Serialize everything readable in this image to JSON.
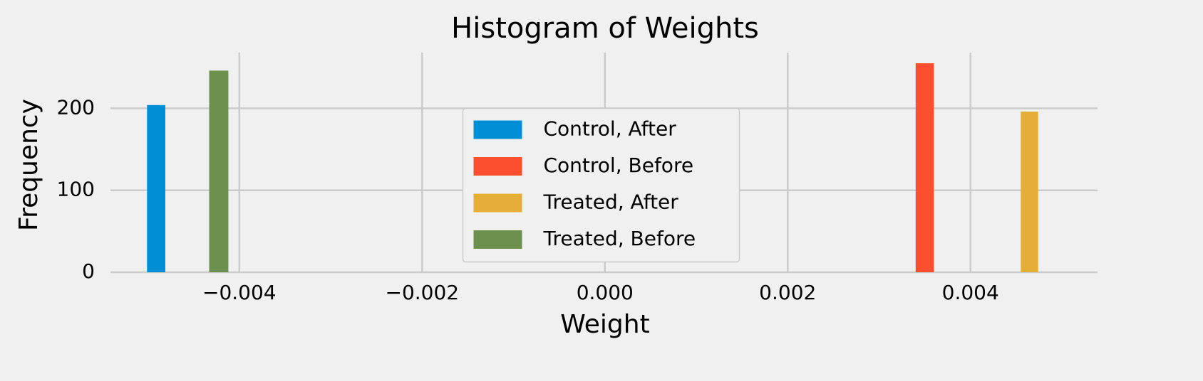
{
  "chart_data": {
    "type": "histogram",
    "title": "Histogram of Weights",
    "x_label": "Weight",
    "y_label": "Frequency",
    "series": [
      {
        "name": "Control, After",
        "color": "#008fd5",
        "bins": [
          -0.00501,
          -0.00481
        ],
        "values": [
          204
        ]
      },
      {
        "name": "Control, Before",
        "color": "#fc4f30",
        "bins": [
          0.0034,
          0.0036
        ],
        "values": [
          255
        ]
      },
      {
        "name": "Treated, After",
        "color": "#e5ae38",
        "bins": [
          0.00455,
          0.00474
        ],
        "values": [
          196
        ]
      },
      {
        "name": "Treated, Before",
        "color": "#6d904f",
        "bins": [
          -0.00433,
          -0.00412
        ],
        "values": [
          246
        ]
      }
    ],
    "xlim": [
      -0.00541,
      0.00539
    ],
    "xticks": [
      {
        "value": -0.004,
        "label": "−0.004"
      },
      {
        "value": -0.002,
        "label": "−0.002"
      },
      {
        "value": 0,
        "label": "0.000"
      },
      0.002,
      0.004
    ],
    "ylim": [
      0,
      268
    ],
    "yticks": [
      0,
      100,
      200
    ],
    "grid": true,
    "legend": "center"
  }
}
